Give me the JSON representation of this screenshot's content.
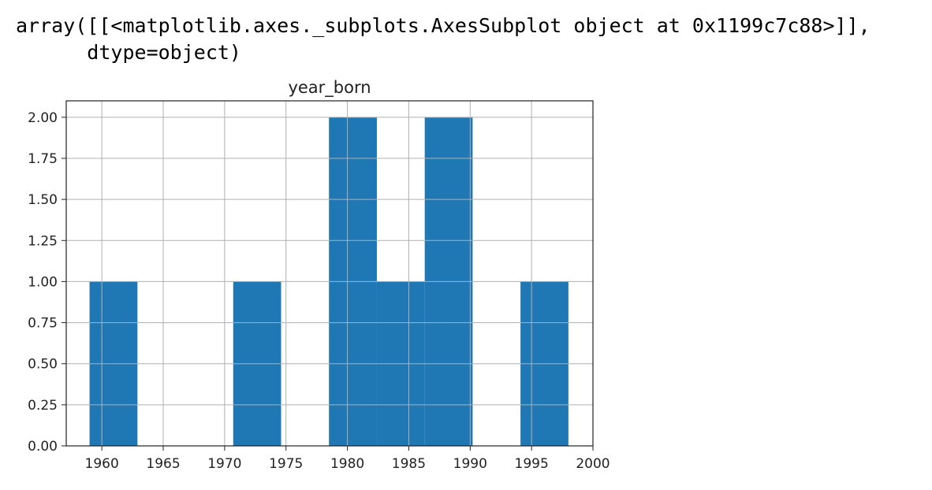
{
  "output": {
    "line1": "array([[<matplotlib.axes._subplots.AxesSubplot object at 0x1199c7c88>]],",
    "line2": "      dtype=object)"
  },
  "chart_data": {
    "type": "bar",
    "title": "year_born",
    "xlabel": "",
    "ylabel": "",
    "xlim": [
      1957.1,
      2000
    ],
    "ylim": [
      0,
      2.1
    ],
    "grid": true,
    "bar_color": "#1f77b4",
    "xticks": [
      1960,
      1965,
      1970,
      1975,
      1980,
      1985,
      1990,
      1995,
      2000
    ],
    "yticks": [
      "0.00",
      "0.25",
      "0.50",
      "0.75",
      "1.00",
      "1.25",
      "1.50",
      "1.75",
      "2.00"
    ],
    "bins": [
      {
        "start": 1959.0,
        "end": 1962.9,
        "count": 1
      },
      {
        "start": 1962.9,
        "end": 1966.8,
        "count": 0
      },
      {
        "start": 1966.8,
        "end": 1970.7,
        "count": 0
      },
      {
        "start": 1970.7,
        "end": 1974.6,
        "count": 1
      },
      {
        "start": 1974.6,
        "end": 1978.5,
        "count": 0
      },
      {
        "start": 1978.5,
        "end": 1982.4,
        "count": 2
      },
      {
        "start": 1982.4,
        "end": 1986.3,
        "count": 1
      },
      {
        "start": 1986.3,
        "end": 1990.2,
        "count": 2
      },
      {
        "start": 1990.2,
        "end": 1994.1,
        "count": 0
      },
      {
        "start": 1994.1,
        "end": 1998.0,
        "count": 1
      }
    ]
  }
}
